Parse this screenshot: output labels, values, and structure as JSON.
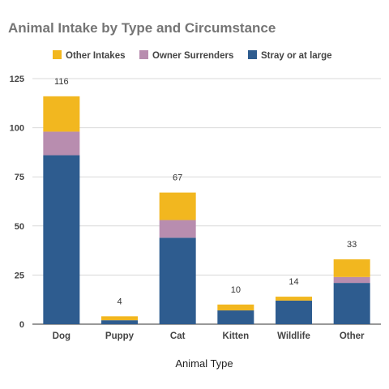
{
  "chart_data": {
    "type": "bar",
    "stacked": true,
    "title": "Animal Intake by Type and Circumstance",
    "xlabel": "Animal Type",
    "ylabel": "",
    "ylim": [
      0,
      125
    ],
    "yticks": [
      0,
      25,
      50,
      75,
      100,
      125
    ],
    "categories": [
      "Dog",
      "Puppy",
      "Cat",
      "Kitten",
      "Wildlife",
      "Other"
    ],
    "series": [
      {
        "name": "Stray or at large",
        "color": "#2e5c8f",
        "values": [
          86,
          2,
          44,
          7,
          12,
          21
        ]
      },
      {
        "name": "Owner Surrenders",
        "color": "#b88daf",
        "values": [
          12,
          0,
          9,
          0,
          0,
          3
        ]
      },
      {
        "name": "Other Intakes",
        "color": "#f2b71f",
        "values": [
          18,
          2,
          14,
          3,
          2,
          9
        ]
      }
    ],
    "totals": [
      116,
      4,
      67,
      10,
      14,
      33
    ],
    "legend_order": [
      "Other Intakes",
      "Owner Surrenders",
      "Stray or at large"
    ],
    "legend_position": "top",
    "grid": true
  }
}
